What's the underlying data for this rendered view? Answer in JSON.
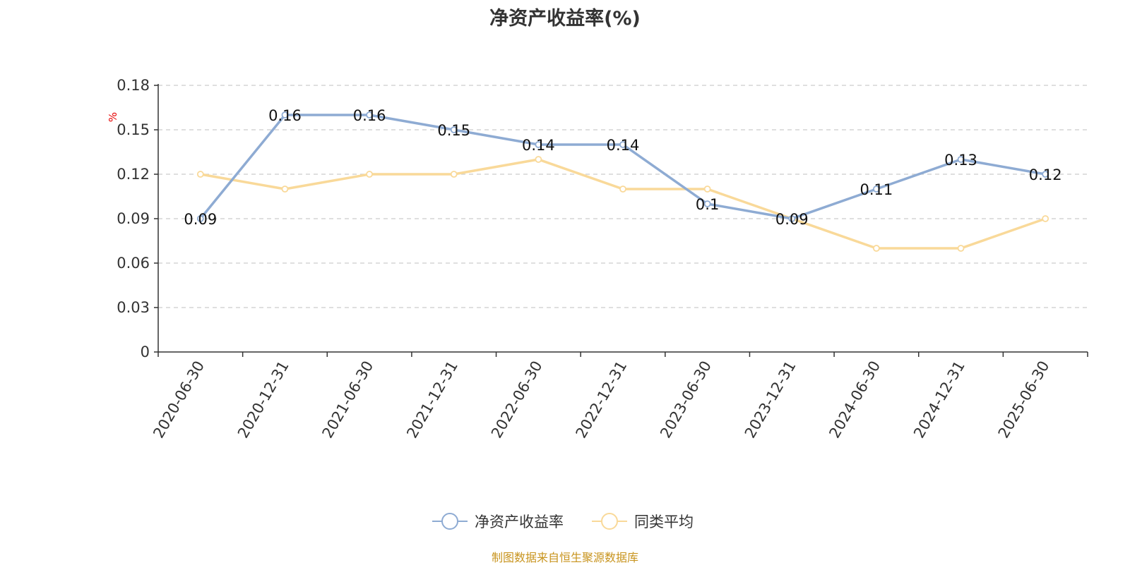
{
  "chart_data": {
    "type": "line",
    "title": "净资产收益率(%)",
    "ylabel": "%",
    "categories": [
      "2020-06-30",
      "2020-12-31",
      "2021-06-30",
      "2021-12-31",
      "2022-06-30",
      "2022-12-31",
      "2023-06-30",
      "2023-12-31",
      "2024-06-30",
      "2024-12-31",
      "2025-06-30"
    ],
    "series": [
      {
        "name": "净资产收益率",
        "color": "#8eabd3",
        "values": [
          0.09,
          0.16,
          0.16,
          0.15,
          0.14,
          0.14,
          0.1,
          0.09,
          0.11,
          0.13,
          0.12
        ],
        "labels": [
          "0.09",
          "0.16",
          "0.16",
          "0.15",
          "0.14",
          "0.14",
          "0.1",
          "0.09",
          "0.11",
          "0.13",
          "0.12"
        ]
      },
      {
        "name": "同类平均",
        "color": "#f9d999",
        "values": [
          0.12,
          0.11,
          0.12,
          0.12,
          0.13,
          0.11,
          0.11,
          0.09,
          0.07,
          0.07,
          0.09
        ]
      }
    ],
    "ylim": [
      0,
      0.18
    ],
    "yticks": [
      "0",
      "0.03",
      "0.06",
      "0.09",
      "0.12",
      "0.15",
      "0.18"
    ],
    "ytick_values": [
      0,
      0.03,
      0.06,
      0.09,
      0.12,
      0.15,
      0.18
    ],
    "grid": true,
    "legend_position": "bottom-center",
    "axis_label_color": "#e60000"
  },
  "source_note": "制图数据来自恒生聚源数据库"
}
